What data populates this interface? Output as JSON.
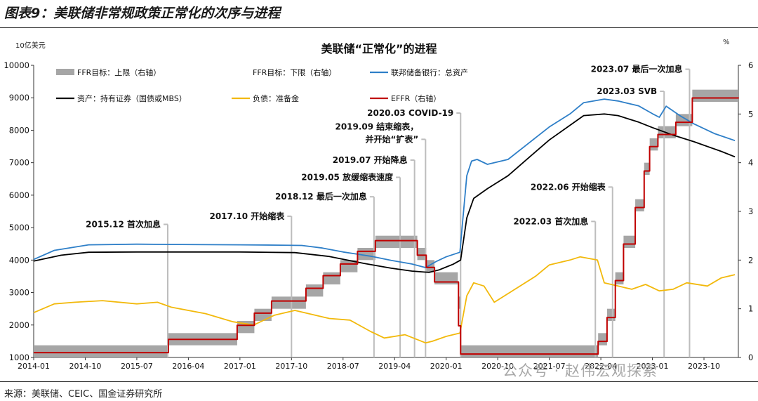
{
  "figure": {
    "title": "图表9：美联储非常规政策正常化的次序与进程",
    "source": "来源：美联储、CEIC、国金证券研究所",
    "watermark": "公众号 · 赵伟宏观探索"
  },
  "chart_data": {
    "type": "line",
    "title": "美联储“正常化”的进程",
    "y_left_unit": "10亿美元",
    "y_right_unit": "%",
    "x_range": [
      2014.0,
      2024.25
    ],
    "y_left": {
      "min": 1000,
      "max": 10000,
      "ticks": [
        "1000",
        "2000",
        "3000",
        "4000",
        "5000",
        "6000",
        "7000",
        "8000",
        "9000",
        "10000"
      ]
    },
    "y_right": {
      "min": 0,
      "max": 6,
      "ticks": [
        "0",
        "1",
        "2",
        "3",
        "4",
        "5",
        "6"
      ]
    },
    "x_ticks": [
      {
        "label": "2014-01",
        "x": 2014.0
      },
      {
        "label": "2014-10",
        "x": 2014.75
      },
      {
        "label": "2015-07",
        "x": 2015.5
      },
      {
        "label": "2016-04",
        "x": 2016.25
      },
      {
        "label": "2017-01",
        "x": 2017.0
      },
      {
        "label": "2017-10",
        "x": 2017.75
      },
      {
        "label": "2018-07",
        "x": 2018.5
      },
      {
        "label": "2019-04",
        "x": 2019.25
      },
      {
        "label": "2020-01",
        "x": 2020.0
      },
      {
        "label": "2020-10",
        "x": 2020.75
      },
      {
        "label": "2021-07",
        "x": 2021.5
      },
      {
        "label": "2022-04",
        "x": 2022.25
      },
      {
        "label": "2023-01",
        "x": 2023.0
      },
      {
        "label": "2023-10",
        "x": 2023.75
      }
    ],
    "legend": [
      {
        "label": "FFR目标：上限（右轴）",
        "color": "#a6a6a6",
        "kind": "bar"
      },
      {
        "label": "FFR目标：下限（右轴）",
        "color": "#ffffff",
        "kind": "bar"
      },
      {
        "label": "联邦储备银行：总资产",
        "color": "#2e7fc8",
        "kind": "line"
      },
      {
        "label": "资产：持有证券（国债或MBS）",
        "color": "#000000",
        "kind": "line"
      },
      {
        "label": "负债：准备金",
        "color": "#f2b90c",
        "kind": "line"
      },
      {
        "label": "EFFR（右轴）",
        "color": "#c00000",
        "kind": "line"
      }
    ],
    "annotations": [
      {
        "label": "2015.12  首次加息",
        "x": 2015.95,
        "label_y": 5100,
        "line_top": 5100
      },
      {
        "label": "2017.10  开始缩表",
        "x": 2017.75,
        "label_y": 5350,
        "line_top": 5350
      },
      {
        "label": "2018.12  最后一次加息",
        "x": 2018.95,
        "label_y": 5950,
        "line_top": 5950
      },
      {
        "label": "2019.05  放缓缩表速度",
        "x": 2019.33,
        "label_y": 6550,
        "line_top": 6550
      },
      {
        "label": "2019.07  开始降息",
        "x": 2019.54,
        "label_y": 7080,
        "line_top": 7080
      },
      {
        "label": "2019.09  结束缩表，",
        "label2": "并开始“扩表”",
        "x": 2019.7,
        "label_y": 7720,
        "line_top": 7720
      },
      {
        "label": "2020.03  COVID-19",
        "x": 2020.21,
        "label_y": 8530,
        "line_top": 8530
      },
      {
        "label": "2022.03  首次加息",
        "x": 2022.17,
        "label_y": 5190,
        "line_top": 5190
      },
      {
        "label": "2022.06  开始缩表",
        "x": 2022.42,
        "label_y": 6250,
        "line_top": 6250
      },
      {
        "label": "2023.03  SVB",
        "x": 2023.17,
        "label_y": 9200,
        "line_top": 9200
      },
      {
        "label": "2023.07  最后一次加息",
        "x": 2023.54,
        "label_y": 9880,
        "line_top": 9880
      }
    ],
    "series": [
      {
        "name": "联邦储备银行：总资产",
        "axis": "left",
        "color": "#2e7fc8",
        "x": [
          2014.0,
          2014.3,
          2014.8,
          2015.5,
          2016.0,
          2017.0,
          2017.6,
          2017.9,
          2018.2,
          2018.5,
          2018.9,
          2019.2,
          2019.5,
          2019.7,
          2019.85,
          2020.0,
          2020.2,
          2020.24,
          2020.3,
          2020.37,
          2020.45,
          2020.6,
          2020.9,
          2021.2,
          2021.5,
          2021.8,
          2022.0,
          2022.3,
          2022.5,
          2022.8,
          2023.0,
          2023.1,
          2023.2,
          2023.4,
          2023.6,
          2023.9,
          2024.2
        ],
        "y": [
          4020,
          4300,
          4470,
          4490,
          4480,
          4470,
          4460,
          4450,
          4370,
          4250,
          4120,
          3990,
          3880,
          3770,
          3950,
          4100,
          4240,
          5200,
          6600,
          7050,
          7100,
          6950,
          7100,
          7600,
          8100,
          8500,
          8850,
          8960,
          8900,
          8750,
          8510,
          8400,
          8740,
          8450,
          8200,
          7900,
          7680
        ]
      },
      {
        "name": "资产：持有证券（国债或MBS）",
        "axis": "left",
        "color": "#000000",
        "x": [
          2014.0,
          2014.4,
          2014.8,
          2015.5,
          2016.0,
          2017.0,
          2017.8,
          2018.3,
          2018.8,
          2019.2,
          2019.5,
          2019.75,
          2019.9,
          2020.1,
          2020.21,
          2020.3,
          2020.4,
          2020.6,
          2020.9,
          2021.2,
          2021.5,
          2021.8,
          2022.0,
          2022.3,
          2022.5,
          2022.8,
          2023.0,
          2023.3,
          2023.6,
          2024.0,
          2024.2
        ],
        "y": [
          3970,
          4150,
          4240,
          4250,
          4250,
          4250,
          4230,
          4110,
          3900,
          3750,
          3660,
          3620,
          3700,
          3870,
          4000,
          5300,
          5900,
          6200,
          6600,
          7150,
          7700,
          8150,
          8450,
          8500,
          8450,
          8250,
          8080,
          7850,
          7650,
          7350,
          7180
        ]
      },
      {
        "name": "负债：准备金",
        "axis": "left",
        "color": "#f2b90c",
        "x": [
          2014.0,
          2014.3,
          2014.6,
          2015.0,
          2015.5,
          2015.8,
          2016.0,
          2016.5,
          2016.9,
          2017.2,
          2017.5,
          2017.8,
          2018.0,
          2018.3,
          2018.6,
          2018.9,
          2019.1,
          2019.4,
          2019.7,
          2019.8,
          2020.0,
          2020.2,
          2020.3,
          2020.4,
          2020.55,
          2020.7,
          2021.0,
          2021.3,
          2021.5,
          2021.8,
          2021.95,
          2022.2,
          2022.3,
          2022.5,
          2022.7,
          2022.9,
          2023.1,
          2023.3,
          2023.5,
          2023.8,
          2024.0,
          2024.2
        ],
        "y": [
          2380,
          2650,
          2700,
          2750,
          2650,
          2700,
          2550,
          2350,
          2100,
          2000,
          2300,
          2450,
          2350,
          2200,
          2150,
          1800,
          1600,
          1700,
          1450,
          1500,
          1650,
          1750,
          2900,
          3300,
          3200,
          2700,
          3100,
          3500,
          3850,
          4000,
          4100,
          4000,
          3300,
          3200,
          3100,
          3250,
          3050,
          3100,
          3300,
          3200,
          3450,
          3550
        ]
      },
      {
        "name": "EFFR（右轴）",
        "axis": "right",
        "color": "#c00000",
        "kind": "step",
        "x": [
          2014.0,
          2015.96,
          2016.96,
          2017.21,
          2017.46,
          2017.96,
          2018.21,
          2018.46,
          2018.71,
          2018.97,
          2019.58,
          2019.71,
          2019.83,
          2020.18,
          2020.21,
          2022.21,
          2022.34,
          2022.46,
          2022.58,
          2022.75,
          2022.88,
          2022.96,
          2023.08,
          2023.34,
          2023.58,
          2024.25
        ],
        "y": [
          0.1,
          0.37,
          0.66,
          0.91,
          1.16,
          1.42,
          1.68,
          1.92,
          2.18,
          2.4,
          2.1,
          1.85,
          1.55,
          0.65,
          0.07,
          0.33,
          0.82,
          1.58,
          2.33,
          3.08,
          3.83,
          4.33,
          4.58,
          4.83,
          5.33,
          5.33
        ]
      },
      {
        "name": "FFR目标：上限（右轴）",
        "axis": "right",
        "kind": "band",
        "x": [
          2014.0,
          2015.96,
          2016.96,
          2017.21,
          2017.46,
          2017.96,
          2018.21,
          2018.46,
          2018.71,
          2018.97,
          2019.58,
          2019.71,
          2019.83,
          2020.17,
          2020.21,
          2022.21,
          2022.34,
          2022.46,
          2022.58,
          2022.75,
          2022.88,
          2022.96,
          2023.08,
          2023.34,
          2023.58,
          2024.25
        ],
        "upper": [
          0.25,
          0.5,
          0.75,
          1.0,
          1.25,
          1.5,
          1.75,
          2.0,
          2.25,
          2.5,
          2.25,
          2.0,
          1.75,
          1.25,
          0.25,
          0.5,
          1.0,
          1.75,
          2.5,
          3.25,
          4.0,
          4.5,
          4.75,
          5.0,
          5.5,
          5.5
        ],
        "lower": [
          0.0,
          0.25,
          0.5,
          0.75,
          1.0,
          1.25,
          1.5,
          1.75,
          2.0,
          2.25,
          2.0,
          1.75,
          1.5,
          1.0,
          0.0,
          0.25,
          0.75,
          1.5,
          2.25,
          3.0,
          3.75,
          4.25,
          4.5,
          4.75,
          5.25,
          5.25
        ]
      }
    ]
  }
}
